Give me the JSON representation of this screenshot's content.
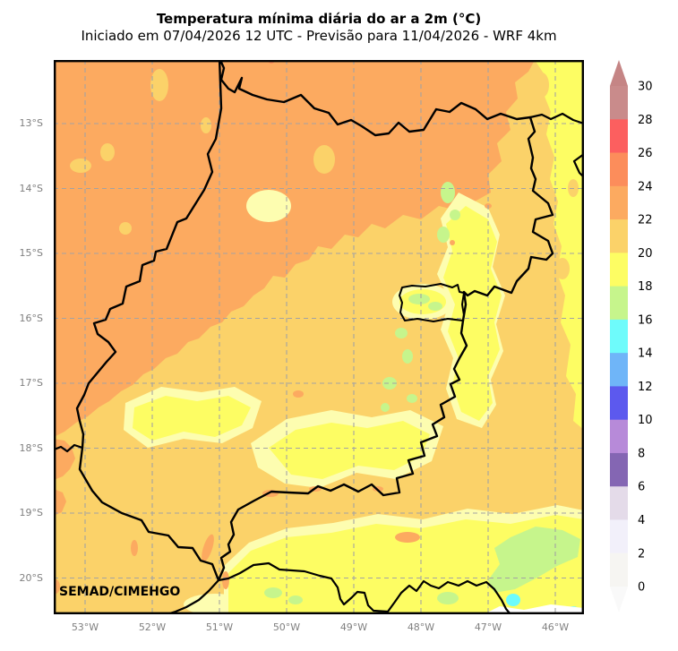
{
  "header": {
    "title": "Temperatura mínima diária do ar a 2m (°C)",
    "subtitle": "Iniciado em 07/04/2026 12 UTC - Previsão para 11/04/2026 - WRF 4km"
  },
  "map": {
    "watermark": "SEMAD/CIMEHGO",
    "lat_labels": [
      "13°S",
      "14°S",
      "15°S",
      "16°S",
      "17°S",
      "18°S",
      "19°S",
      "20°S"
    ],
    "lon_labels": [
      "53°W",
      "52°W",
      "51°W",
      "50°W",
      "49°W",
      "48°W",
      "47°W",
      "46°W"
    ]
  },
  "palette": {
    "t24_26": "#fc8d5b",
    "t22_24": "#fcaa60",
    "t20_22": "#fbd269",
    "t18_20": "#fdfd63",
    "t16_18": "#c6f58c",
    "t14_16": "#6efbfb",
    "pale_yellow": "#fdfdb0",
    "nodata_white": "#ffffff",
    "boundary_black": "#000000",
    "grid_gray": "#a3a3a3"
  },
  "colorbar": {
    "unit": "°C",
    "tick_labels": [
      "30",
      "28",
      "26",
      "24",
      "22",
      "20",
      "18",
      "16",
      "14",
      "12",
      "10",
      "8",
      "6",
      "4",
      "2",
      "0"
    ],
    "segments": [
      {
        "range": "28-30",
        "color": "#c98b8b"
      },
      {
        "range": "26-28",
        "color": "#fc5f5f"
      },
      {
        "range": "24-26",
        "color": "#fc8d5b"
      },
      {
        "range": "22-24",
        "color": "#fcaa60"
      },
      {
        "range": "20-22",
        "color": "#fbd269"
      },
      {
        "range": "18-20",
        "color": "#fdfd63"
      },
      {
        "range": "16-18",
        "color": "#c6f58c"
      },
      {
        "range": "14-16",
        "color": "#6efbfb"
      },
      {
        "range": "12-14",
        "color": "#6fb5f8"
      },
      {
        "range": "10-12",
        "color": "#5c59ee"
      },
      {
        "range": "8-10",
        "color": "#b78ad9"
      },
      {
        "range": "6-8",
        "color": "#8466b3"
      },
      {
        "range": "4-6",
        "color": "#e4dbe9"
      },
      {
        "range": "2-4",
        "color": "#f2f0fa"
      },
      {
        "range": "0-2",
        "color": "#f6f5f2"
      }
    ],
    "extend_above_color": "#c58585",
    "extend_below_color": "#f9f9f9"
  }
}
